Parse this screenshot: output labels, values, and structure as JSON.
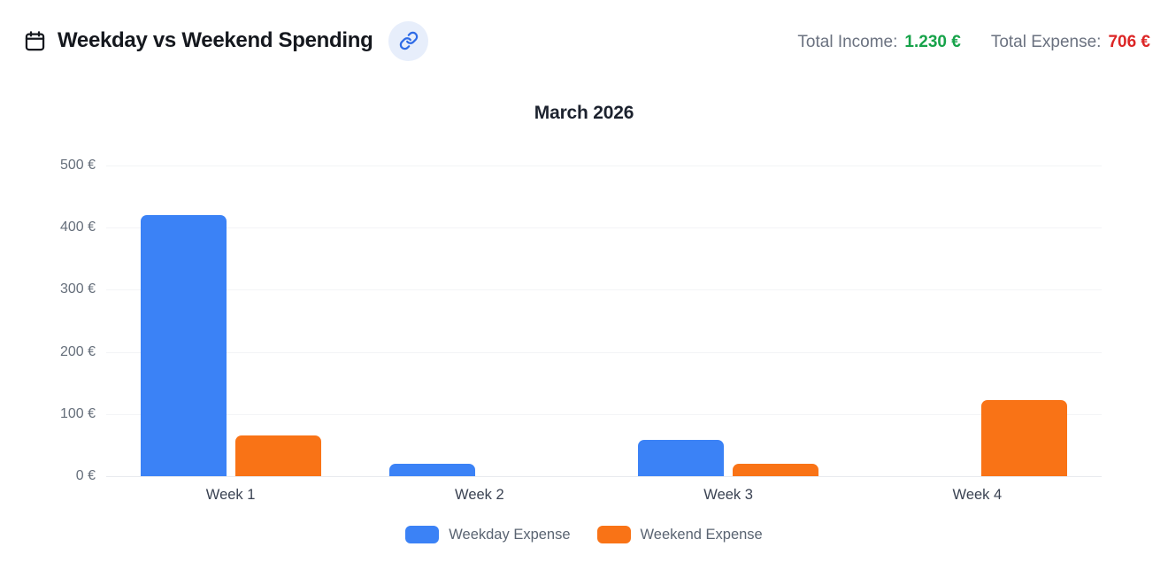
{
  "header": {
    "title": "Weekday vs Weekend Spending",
    "total_income_label": "Total Income:",
    "total_income_value": "1.230 €",
    "total_expense_label": "Total Expense:",
    "total_expense_value": "706 €"
  },
  "colors": {
    "weekday_bar": "#3b82f6",
    "weekend_bar": "#f97316",
    "income_value": "#17a34a",
    "expense_value": "#dc2626",
    "link_icon": "#2e6be6",
    "link_button_bg": "#e7eefb"
  },
  "icons": {
    "calendar": "calendar-icon",
    "link": "link-icon"
  },
  "chart_data": {
    "type": "bar",
    "title": "March 2026",
    "categories": [
      "Week 1",
      "Week 2",
      "Week 3",
      "Week 4"
    ],
    "series": [
      {
        "name": "Weekday Expense",
        "color": "#3b82f6",
        "values": [
          420,
          20,
          58,
          0
        ]
      },
      {
        "name": "Weekend Expense",
        "color": "#f97316",
        "values": [
          65,
          0,
          20,
          123
        ]
      }
    ],
    "xlabel": "",
    "ylabel": "",
    "ylim": [
      0,
      500
    ],
    "ytick_step": 100,
    "ytick_suffix": " €",
    "grid": true,
    "legend_position": "bottom"
  }
}
